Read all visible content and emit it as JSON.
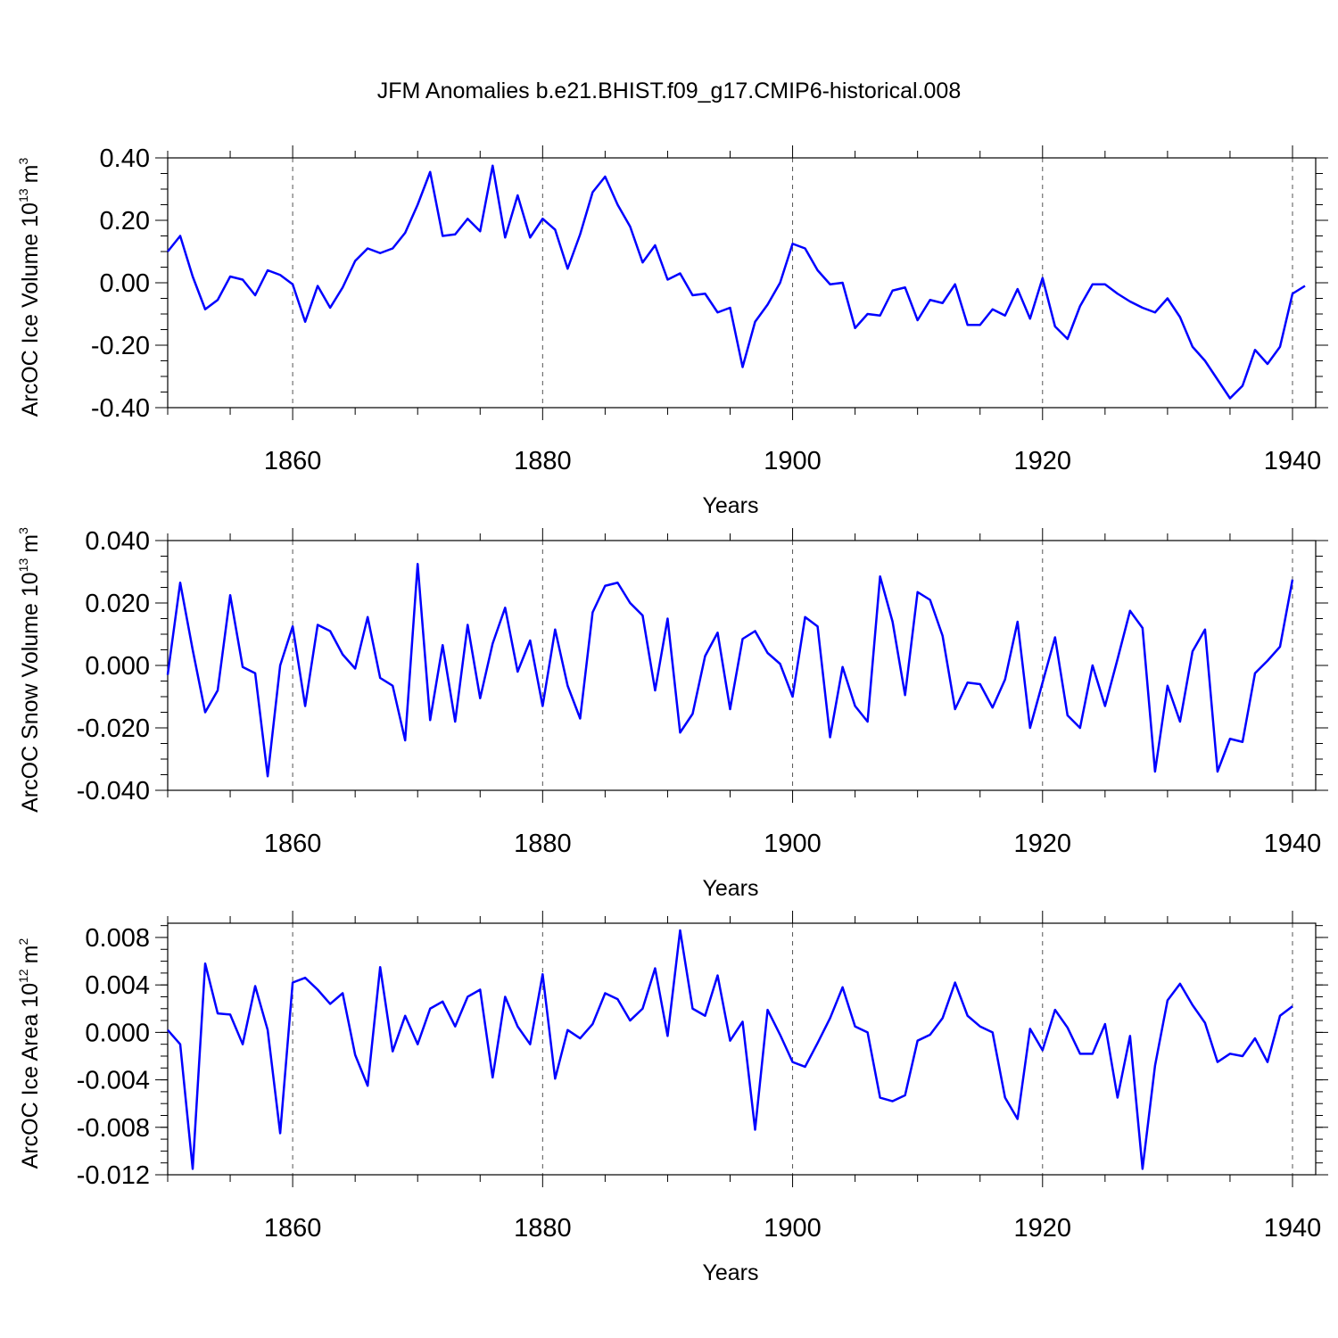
{
  "chart_data": {
    "title": "JFM Anomalies b.e21.BHIST.f09_g17.CMIP6-historical.008",
    "panels": [
      {
        "type": "line",
        "xlabel": "Years",
        "ylabel_main": "ArcOC Ice Volume 10",
        "ylabel_exp": "13",
        "ylabel_unit": "m",
        "ylabel_unit_exp": "3",
        "xlim": [
          1850,
          1942
        ],
        "ylim": [
          -0.4,
          0.4
        ],
        "xticks": [
          1860,
          1880,
          1900,
          1920,
          1940
        ],
        "xtick_labels": [
          "1860",
          "1880",
          "1900",
          "1920",
          "1940"
        ],
        "yticks": [
          0.4,
          0.2,
          0.0,
          -0.2,
          -0.4
        ],
        "ytick_labels": [
          "0.40",
          "0.20",
          "0.00",
          "-0.20",
          "-0.40"
        ],
        "x_start": 1850,
        "values": [
          0.1,
          0.15,
          0.02,
          -0.085,
          -0.055,
          0.02,
          0.01,
          -0.04,
          0.04,
          0.025,
          -0.005,
          -0.125,
          -0.01,
          -0.08,
          -0.015,
          0.07,
          0.11,
          0.095,
          0.11,
          0.16,
          0.25,
          0.355,
          0.15,
          0.155,
          0.205,
          0.165,
          0.375,
          0.145,
          0.28,
          0.145,
          0.205,
          0.17,
          0.045,
          0.155,
          0.29,
          0.34,
          0.25,
          0.18,
          0.065,
          0.12,
          0.01,
          0.03,
          -0.04,
          -0.035,
          -0.095,
          -0.08,
          -0.27,
          -0.125,
          -0.07,
          0.0,
          0.125,
          0.11,
          0.04,
          -0.005,
          0.0,
          -0.145,
          -0.1,
          -0.105,
          -0.025,
          -0.015,
          -0.12,
          -0.055,
          -0.065,
          -0.005,
          -0.135,
          -0.135,
          -0.085,
          -0.105,
          -0.02,
          -0.115,
          0.015,
          -0.14,
          -0.18,
          -0.075,
          -0.005,
          -0.005,
          -0.035,
          -0.06,
          -0.08,
          -0.095,
          -0.05,
          -0.11,
          -0.205,
          -0.25,
          -0.31,
          -0.37,
          -0.33,
          -0.215,
          -0.26,
          -0.205,
          -0.035,
          -0.01
        ]
      },
      {
        "type": "line",
        "xlabel": "Years",
        "ylabel_main": "ArcOC Snow Volume 10",
        "ylabel_exp": "13",
        "ylabel_unit": "m",
        "ylabel_unit_exp": "3",
        "xlim": [
          1850,
          1942
        ],
        "ylim": [
          -0.04,
          0.04
        ],
        "xticks": [
          1860,
          1880,
          1900,
          1920,
          1940
        ],
        "xtick_labels": [
          "1860",
          "1880",
          "1900",
          "1920",
          "1940"
        ],
        "yticks": [
          0.04,
          0.02,
          0.0,
          -0.02,
          -0.04
        ],
        "ytick_labels": [
          "0.040",
          "0.020",
          "0.000",
          "-0.020",
          "-0.040"
        ],
        "x_start": 1850,
        "values": [
          -0.003,
          0.0265,
          0.005,
          -0.015,
          -0.008,
          0.0225,
          -0.0005,
          -0.0025,
          -0.0355,
          0.0,
          0.0125,
          -0.013,
          0.013,
          0.011,
          0.0035,
          -0.001,
          0.0155,
          -0.004,
          -0.0065,
          -0.024,
          0.0325,
          -0.0175,
          0.0065,
          -0.018,
          0.013,
          -0.0105,
          0.007,
          0.0185,
          -0.002,
          0.008,
          -0.013,
          0.0115,
          -0.0065,
          -0.017,
          0.017,
          0.0255,
          0.0265,
          0.02,
          0.016,
          -0.008,
          0.015,
          -0.0215,
          -0.0155,
          0.003,
          0.0105,
          -0.014,
          0.0085,
          0.011,
          0.004,
          0.0005,
          -0.01,
          0.0155,
          0.0125,
          -0.023,
          -0.0005,
          -0.013,
          -0.018,
          0.0285,
          0.014,
          -0.0095,
          0.0235,
          0.021,
          0.0095,
          -0.014,
          -0.0055,
          -0.006,
          -0.0135,
          -0.0045,
          0.014,
          -0.02,
          -0.0055,
          0.009,
          -0.016,
          -0.02,
          0.0,
          -0.013,
          0.002,
          0.0175,
          0.012,
          -0.034,
          -0.0065,
          -0.018,
          0.0045,
          0.0115,
          -0.034,
          -0.0235,
          -0.0245,
          -0.0025,
          0.0015,
          0.006,
          0.0275
        ]
      },
      {
        "type": "line",
        "xlabel": "Years",
        "ylabel_main": "ArcOC Ice Area 10",
        "ylabel_exp": "12",
        "ylabel_unit": "m",
        "ylabel_unit_exp": "2",
        "xlim": [
          1850,
          1942
        ],
        "ylim": [
          -0.012,
          0.0092
        ],
        "xticks": [
          1860,
          1880,
          1900,
          1920,
          1940
        ],
        "xtick_labels": [
          "1860",
          "1880",
          "1900",
          "1920",
          "1940"
        ],
        "yticks": [
          0.008,
          0.004,
          0.0,
          -0.004,
          -0.008,
          -0.012
        ],
        "ytick_labels": [
          "0.008",
          "0.004",
          "0.000",
          "-0.004",
          "-0.008",
          "-0.012"
        ],
        "x_start": 1850,
        "values": [
          0.0002,
          -0.001,
          -0.0115,
          0.0058,
          0.0016,
          0.0015,
          -0.001,
          0.0039,
          0.0002,
          -0.0085,
          0.0042,
          0.0046,
          0.0036,
          0.0024,
          0.0033,
          -0.0019,
          -0.0045,
          0.0055,
          -0.0016,
          0.0014,
          -0.001,
          0.002,
          0.0026,
          0.0005,
          0.003,
          0.0036,
          -0.0038,
          0.003,
          0.0005,
          -0.001,
          0.0049,
          -0.0039,
          0.0002,
          -0.0005,
          0.0007,
          0.0033,
          0.0028,
          0.001,
          0.002,
          0.0054,
          -0.0003,
          0.0086,
          0.002,
          0.0014,
          0.0048,
          -0.0007,
          0.0009,
          -0.0082,
          0.0019,
          -0.0002,
          -0.0025,
          -0.0029,
          -0.0009,
          0.0012,
          0.0038,
          0.0005,
          0.0,
          -0.0055,
          -0.0058,
          -0.0053,
          -0.0007,
          -0.0002,
          0.0012,
          0.0042,
          0.0014,
          0.0005,
          0.0,
          -0.0055,
          -0.0073,
          0.0003,
          -0.0015,
          0.0019,
          0.0004,
          -0.0018,
          -0.0018,
          0.0007,
          -0.0055,
          -0.0003,
          -0.0115,
          -0.0028,
          0.0027,
          0.0041,
          0.0023,
          0.0008,
          -0.0025,
          -0.0018,
          -0.002,
          -0.0005,
          -0.0025,
          0.0014,
          0.0022
        ]
      }
    ]
  }
}
